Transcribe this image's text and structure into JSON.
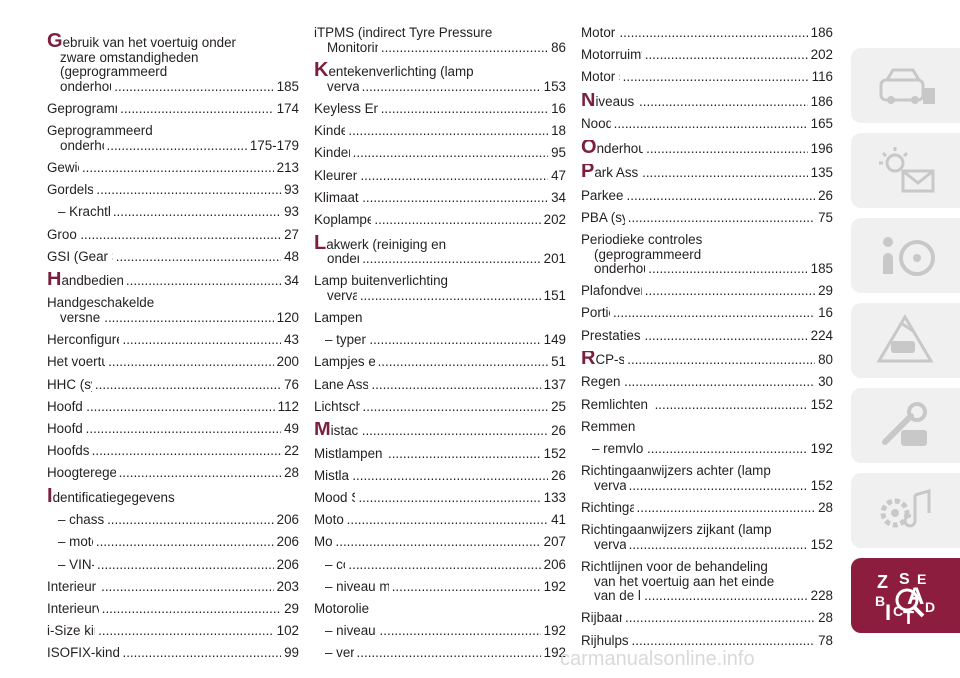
{
  "index": {
    "col1": [
      {
        "lines": [
          "zware omstandigheden",
          "(geprogrammeerd"
        ],
        "first": "Gebruik van het voertuig onder",
        "last": "onderhoudsschema)",
        "page": "185",
        "cap": true
      },
      {
        "text": "Geprogrammeerd onderhoud",
        "page": "174"
      },
      {
        "first": "Geprogrammeerd",
        "last": "onderhoudsschema",
        "page": "175-179"
      },
      {
        "text": "Gewichten",
        "page": "213"
      },
      {
        "text": "Gordelspanners",
        "page": "93"
      },
      {
        "text": "– Krachtbegrenzers",
        "page": "93",
        "sub": true
      },
      {
        "text": "Grootlicht",
        "page": "27"
      },
      {
        "text": "GSI (Gear Shift Indicator)",
        "page": "48"
      },
      {
        "text": "Handbediende klimaatregeling",
        "page": "34",
        "cap": true
      },
      {
        "first": "Handgeschakelde",
        "last": "versnellingsbak",
        "page": "120"
      },
      {
        "text": "Herconfigureerbare laadvloer",
        "page": "43"
      },
      {
        "text": "Het voertuig opkrikken",
        "page": "200"
      },
      {
        "text": "HHC (systeem)",
        "page": "76"
      },
      {
        "text": "Hoofdairbag",
        "page": "112"
      },
      {
        "text": "Hoofdmenu",
        "page": "49"
      },
      {
        "text": "Hoofdsteunen",
        "page": "22"
      },
      {
        "text": "Hoogteregeling koplampen",
        "page": "28"
      },
      {
        "heading": "Identificatiegegevens",
        "cap": true
      },
      {
        "text": "– chassisnummer",
        "page": "206",
        "sub": true
      },
      {
        "text": "– motorcode",
        "page": "206",
        "sub": true
      },
      {
        "text": "– VIN-plaatje",
        "page": "206",
        "sub": true
      },
      {
        "text": "Interieur (reiniging)",
        "page": "203"
      },
      {
        "text": "Interieurverlichting",
        "page": "29"
      },
      {
        "text": "i-Size kinderzitjes",
        "page": "102"
      },
      {
        "text": "ISOFIX-kinderzitje (montage)",
        "page": "99"
      }
    ],
    "col2": [
      {
        "first": "iTPMS (indirect Tyre Pressure",
        "last": "Monitoring System)",
        "page": "86"
      },
      {
        "first": "Kentekenverlichting (lamp",
        "last": "vervangen)",
        "page": "153",
        "cap": true
      },
      {
        "text": "Keyless Entry (systeem)",
        "page": "16"
      },
      {
        "text": "Kinderslot",
        "page": "18"
      },
      {
        "text": "Kinderzitjes",
        "page": "95"
      },
      {
        "text": "Kleurendisplay",
        "page": "47"
      },
      {
        "text": "Klimaatregeling",
        "page": "34"
      },
      {
        "text": "Koplampen (reiniging)",
        "page": "202"
      },
      {
        "first": "Lakwerk (reiniging en",
        "last": "onderhoud)",
        "page": "201",
        "cap": true
      },
      {
        "first": "Lamp buitenverlichting",
        "last": "vervangen",
        "page": "151"
      },
      {
        "heading": "Lampen"
      },
      {
        "text": "– typen lampen",
        "page": "149",
        "sub": true
      },
      {
        "text": "Lampjes en meldingen",
        "page": "51"
      },
      {
        "text": "Lane Assist systeem",
        "page": "137"
      },
      {
        "text": "Lichtschakelaar",
        "page": "25"
      },
      {
        "text": "Mistachterlicht",
        "page": "26",
        "cap": true
      },
      {
        "text": "Mistlampen (lamp vervangen)",
        "page": "152"
      },
      {
        "text": "Mistlampen",
        "page": "26"
      },
      {
        "text": "Mood Selector",
        "page": "133"
      },
      {
        "text": "Motorkap",
        "page": "41"
      },
      {
        "text": "Motor",
        "page": "207"
      },
      {
        "text": "– code",
        "page": "206",
        "sub": true
      },
      {
        "text": "– niveau motorkoelvloeistof",
        "page": "192",
        "sub": true
      },
      {
        "heading": "Motorolie"
      },
      {
        "text": "– niveau controleren",
        "page": "192",
        "sub": true
      },
      {
        "text": "– verbruik",
        "page": "192",
        "sub": true
      }
    ],
    "col3": [
      {
        "text": "Motorruimte",
        "page": "186"
      },
      {
        "text": "Motorruimte (uitspuiten)",
        "page": "202"
      },
      {
        "text": "Motor starten",
        "page": "116"
      },
      {
        "text": "Niveaus controleren",
        "page": "186",
        "cap": true
      },
      {
        "text": "Noodstart",
        "page": "165"
      },
      {
        "text": "Onderhoudsprocedures",
        "page": "196",
        "cap": true
      },
      {
        "text": "Park Assist (systeem)",
        "page": "135",
        "cap": true
      },
      {
        "text": "Parkeerlichten",
        "page": "26"
      },
      {
        "text": "PBA (systeem)",
        "page": "75"
      },
      {
        "lines": [
          "(geprogrammeerd"
        ],
        "first": "Periodieke controles",
        "last": "onderhoudsschema)",
        "page": "185"
      },
      {
        "text": "Plafondverlichting voor",
        "page": "29"
      },
      {
        "text": "Portieren",
        "page": "16"
      },
      {
        "text": "Prestaties (topsnelheid)",
        "page": "224"
      },
      {
        "text": "RCP-systeem",
        "page": "80",
        "cap": true
      },
      {
        "text": "Regensensor",
        "page": "30"
      },
      {
        "text": "Remlichten (lamp vervangen)",
        "page": "152"
      },
      {
        "heading": "Remmen"
      },
      {
        "text": "– remvloeistofniveau",
        "page": "192",
        "sub": true
      },
      {
        "first": "Richtingaanwijzers achter (lamp",
        "last": "vervangen)",
        "page": "152"
      },
      {
        "text": "Richtingaanwijzers",
        "page": "28"
      },
      {
        "first": "Richtingaanwijzers zijkant (lamp",
        "last": "vervangen)",
        "page": "152"
      },
      {
        "lines": [
          "van het voertuig aan het einde"
        ],
        "first": "Richtlijnen voor de behandeling",
        "last": "van de levensduur",
        "page": "228"
      },
      {
        "text": "Rijbaanwissel",
        "page": "28"
      },
      {
        "text": "Rijhulpsystemen",
        "page": "78"
      }
    ]
  },
  "sidebar": {
    "tabs": [
      {
        "icon": "car-dashboard-icon"
      },
      {
        "icon": "warning-light-envelope-icon"
      },
      {
        "icon": "steering-wheel-icon"
      },
      {
        "icon": "car-crash-triangle-icon"
      },
      {
        "icon": "key-spanner-icon"
      },
      {
        "icon": "gear-radio-icon"
      },
      {
        "icon": "alphabet-index-icon"
      }
    ],
    "active_color": "#8c1d3f"
  },
  "watermark": "carmanualsonline.info",
  "accent_color": "#7a1f3d"
}
